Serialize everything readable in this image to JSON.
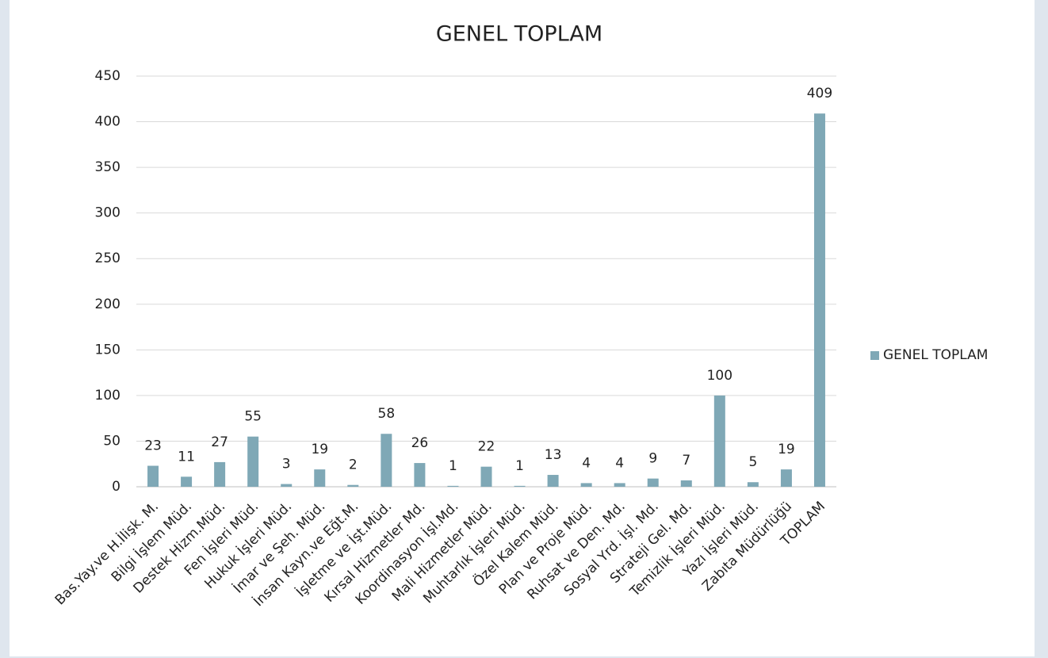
{
  "chart_data": {
    "type": "bar",
    "title": "GENEL TOPLAM",
    "categories": [
      "Bas.Yay.ve H.İlişk. M.",
      "Bilgi İşlem Müd.",
      "Destek Hizm.Müd.",
      "Fen İşleri Müd.",
      "Hukuk İşleri Müd.",
      "İmar ve Şeh. Müd.",
      "İnsan Kayn.ve Eğt.M.",
      "İşletme ve İşt.Müd.",
      "Kırsal Hizmetler Md.",
      "Koordinasyon İşl.Md.",
      "Mali Hizmetler Müd.",
      "Muhtarlık İşleri Müd.",
      "Özel Kalem Müd.",
      "Plan ve Proje Müd.",
      "Ruhsat ve Den. Md.",
      "Sosyal Yrd. İşl. Md.",
      "Strateji Gel. Md.",
      "Temizlik İşleri Müd.",
      "Yazı İşleri Müd.",
      "Zabıta Müdürlüğü",
      "TOPLAM"
    ],
    "series": [
      {
        "name": "GENEL TOPLAM",
        "color": "#7fa8b6",
        "values": [
          23,
          11,
          27,
          55,
          3,
          19,
          2,
          58,
          26,
          1,
          22,
          1,
          13,
          4,
          4,
          9,
          7,
          100,
          5,
          19,
          409
        ]
      }
    ],
    "ylim": [
      0,
      450
    ],
    "yticks": [
      0,
      50,
      100,
      150,
      200,
      250,
      300,
      350,
      400,
      450
    ],
    "grid": true,
    "legend": "right",
    "data_labels": true
  }
}
